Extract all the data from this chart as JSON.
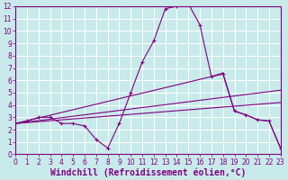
{
  "x_min": 0,
  "x_max": 23,
  "y_min": 0,
  "y_max": 12,
  "x_ticks": [
    0,
    1,
    2,
    3,
    4,
    5,
    6,
    7,
    8,
    9,
    10,
    11,
    12,
    13,
    14,
    15,
    16,
    17,
    18,
    19,
    20,
    21,
    22,
    23
  ],
  "y_ticks": [
    0,
    1,
    2,
    3,
    4,
    5,
    6,
    7,
    8,
    9,
    10,
    11,
    12
  ],
  "xlabel": "Windchill (Refroidissement éolien,°C)",
  "bg_color": "#c8eaea",
  "line_color": "#800080",
  "grid_color": "#ffffff",
  "series1_x": [
    0,
    1,
    2,
    3,
    4,
    5,
    6,
    7,
    8,
    9,
    10,
    11,
    12,
    13,
    14,
    15,
    16,
    17,
    18,
    19,
    20,
    21,
    22,
    23
  ],
  "series1_y": [
    2.5,
    2.7,
    3.0,
    3.0,
    2.5,
    2.5,
    2.3,
    1.2,
    0.5,
    2.5,
    5.0,
    7.5,
    9.2,
    11.8,
    12.0,
    12.2,
    10.5,
    6.3,
    6.5,
    3.5,
    3.2,
    2.8,
    2.7,
    0.5
  ],
  "series2_x": [
    0,
    17,
    18,
    19,
    20,
    21,
    22,
    23
  ],
  "series2_y": [
    2.5,
    6.3,
    6.6,
    3.5,
    3.2,
    2.8,
    2.7,
    0.5
  ],
  "series3_x": [
    0,
    23
  ],
  "series3_y": [
    2.5,
    5.2
  ],
  "series4_x": [
    0,
    23
  ],
  "series4_y": [
    2.5,
    4.2
  ],
  "tick_fontsize": 5.5,
  "xlabel_fontsize": 7.0
}
